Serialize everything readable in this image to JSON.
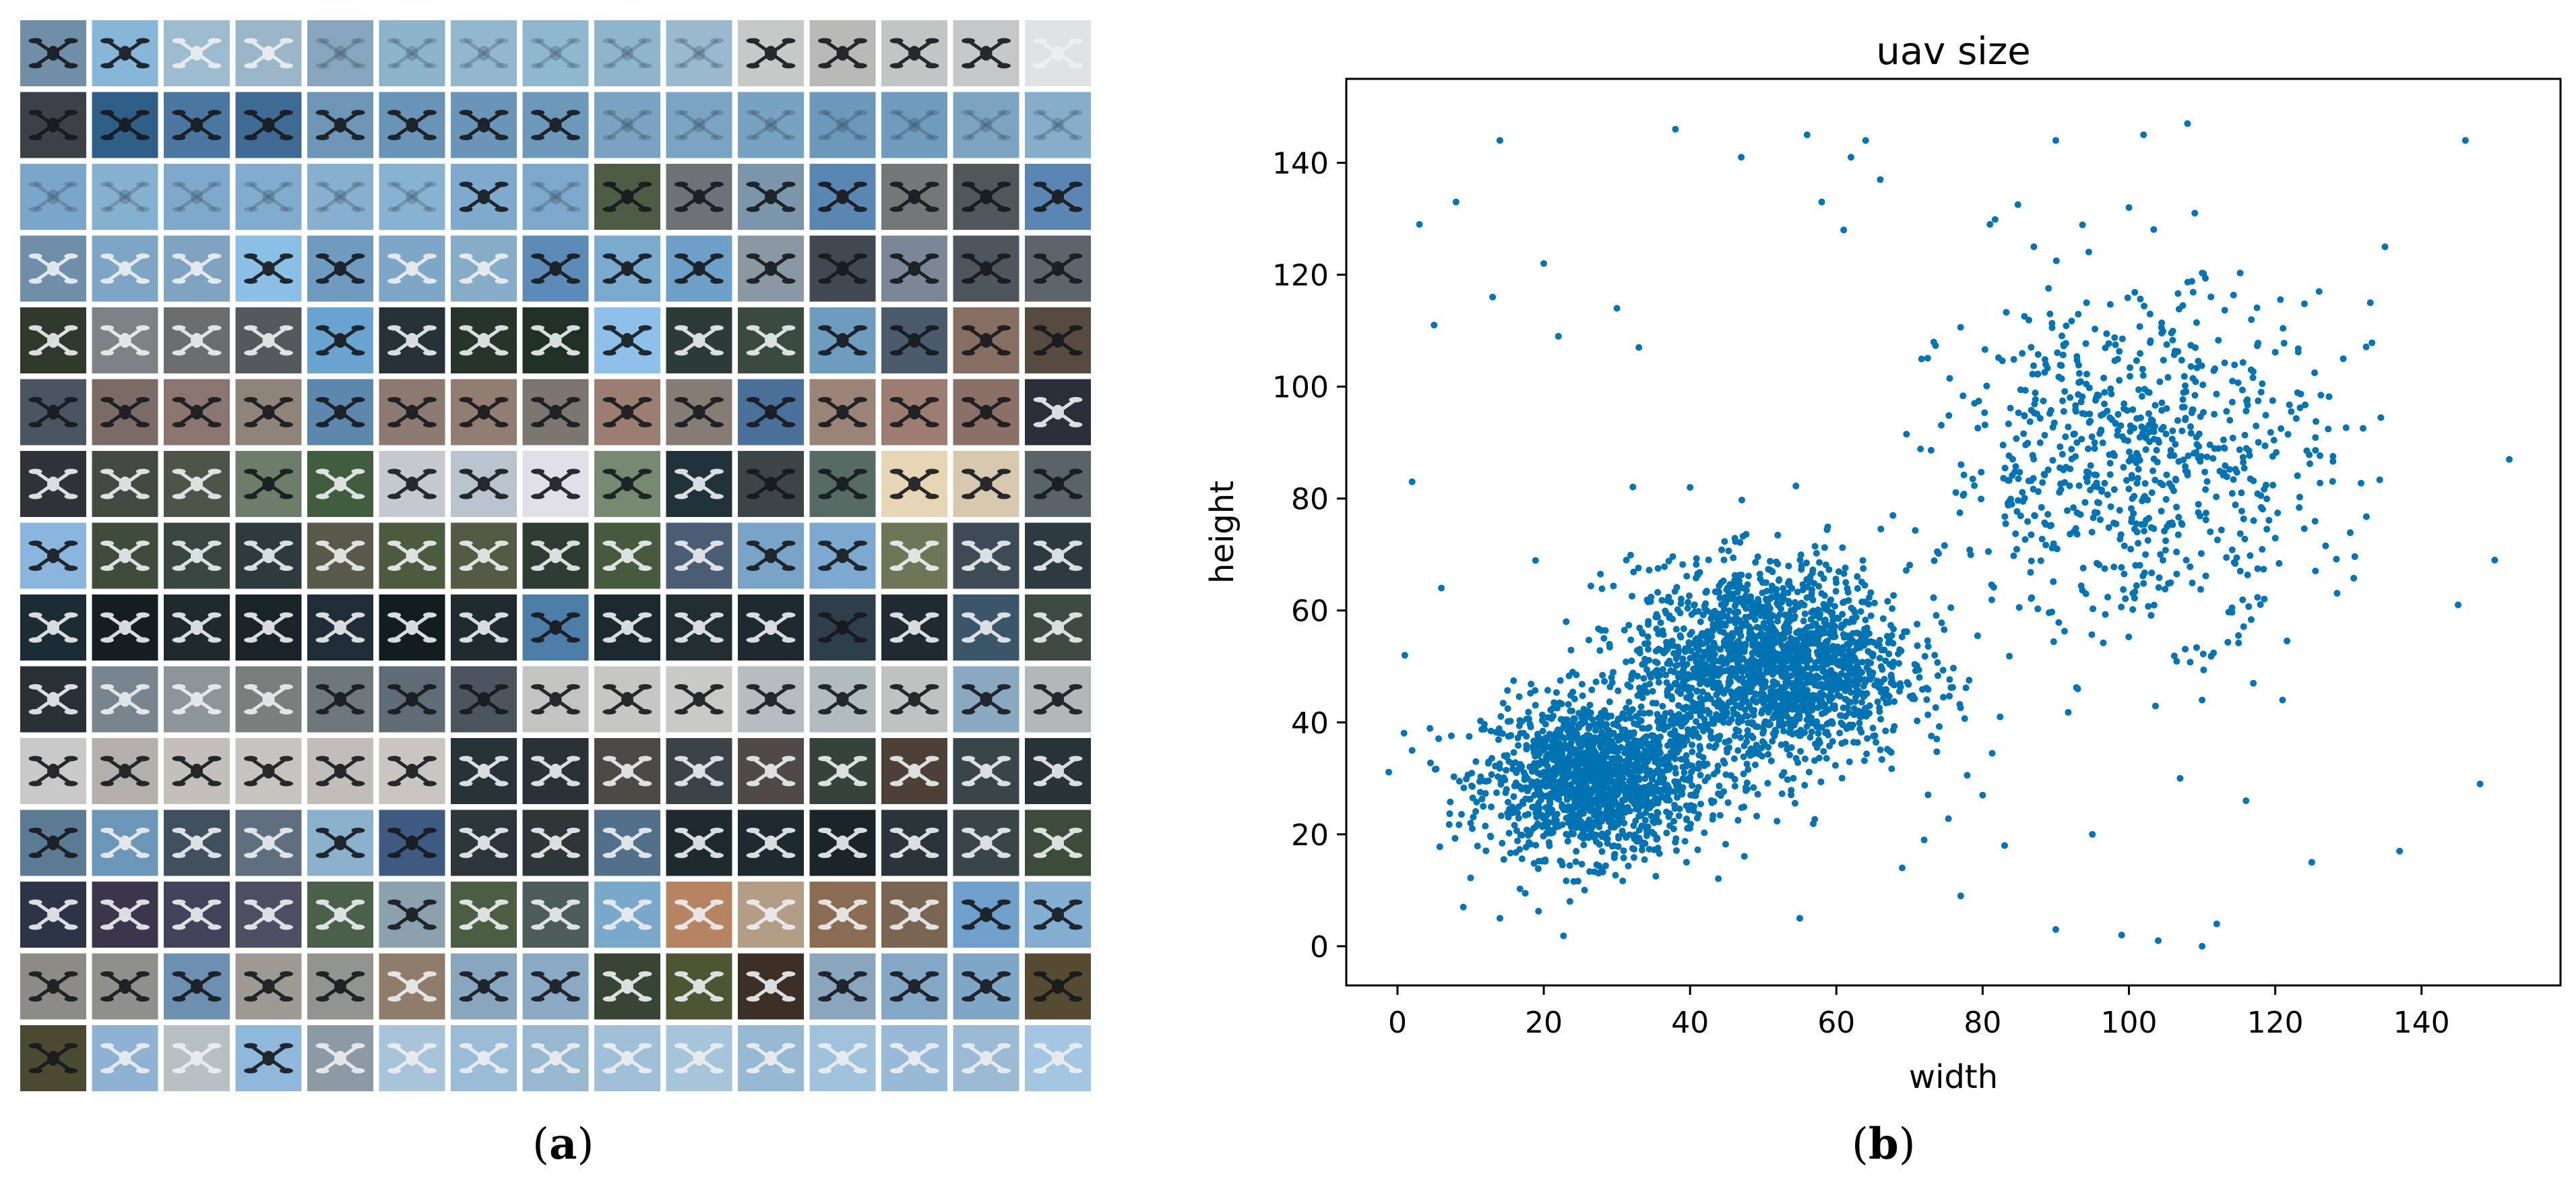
{
  "panels": {
    "a": {
      "caption_open": "(",
      "caption_letter": "a",
      "caption_close": ")"
    },
    "b": {
      "caption_open": "(",
      "caption_letter": "b",
      "caption_close": ")"
    }
  },
  "mosaic": {
    "rows": 15,
    "cols": 15,
    "tile_colors": [
      [
        "#6f8fa8",
        "#86b6d8",
        "#9dbcd0",
        "#9ab6c8",
        "#86a6be",
        "#8eb4cc",
        "#93b7cf",
        "#8fb7d0",
        "#8fb5cc",
        "#9ab9ce",
        "#c7c9c9",
        "#b9b9b8",
        "#c3c4c4",
        "#c5c7c9",
        "#e0e2e4"
      ],
      [
        "#3b4147",
        "#2f5f86",
        "#4a76a0",
        "#3f6a94",
        "#6d95b5",
        "#6a94b7",
        "#6a95b8",
        "#6d98ba",
        "#7aa2c1",
        "#7ba4c3",
        "#78a2c2",
        "#6b98bb",
        "#6f9bbd",
        "#7ca4c1",
        "#86aeca"
      ],
      [
        "#7aa6cb",
        "#86b0cf",
        "#7fa9ca",
        "#82acce",
        "#86afd0",
        "#88b2d1",
        "#80aacd",
        "#7ea8cb",
        "#4e5b45",
        "#6d7276",
        "#7b95aa",
        "#5a87b1",
        "#757678",
        "#4f5758",
        "#5b86b4"
      ],
      [
        "#6e8eaa",
        "#7ea5c4",
        "#7fa3c0",
        "#8cbfe6",
        "#6f9bc0",
        "#7ea6c6",
        "#86acc8",
        "#5d8bb7",
        "#7baacf",
        "#6d9fc8",
        "#8a98a3",
        "#414852",
        "#7b8796",
        "#4f555d",
        "#5e646c"
      ],
      [
        "#2f3a2c",
        "#7e8285",
        "#6c6d6f",
        "#55595e",
        "#6aa2d0",
        "#263238",
        "#27342a",
        "#203025",
        "#8ec0ea",
        "#2d3b38",
        "#394a3f",
        "#6e9cbe",
        "#4a5c6c",
        "#866f62",
        "#574a3f"
      ],
      [
        "#4b5562",
        "#7b6b66",
        "#8a7570",
        "#8f8479",
        "#5d87ad",
        "#8c7a70",
        "#927d72",
        "#7c7670",
        "#9b7d71",
        "#867c76",
        "#4a6f99",
        "#9a8478",
        "#9d7d72",
        "#8a7066",
        "#2c2f39"
      ],
      [
        "#2f3236",
        "#424a42",
        "#4f5449",
        "#6c7d6a",
        "#405e3d",
        "#c5c8cf",
        "#b9c4cf",
        "#e0e0e6",
        "#758a70",
        "#22323a",
        "#3d4448",
        "#566b63",
        "#e7d6b6",
        "#d8c8b0",
        "#5a6468"
      ],
      [
        "#8ab6de",
        "#3f4c3c",
        "#3a4642",
        "#2f3a3e",
        "#5a5a4a",
        "#4c5a3e",
        "#555a44",
        "#2f3c34",
        "#475a3e",
        "#4a5d75",
        "#79a4c8",
        "#7da9d0",
        "#6f7658",
        "#3e4a55",
        "#2d3a40"
      ],
      [
        "#1c2c35",
        "#161e22",
        "#1e2a2c",
        "#1a2328",
        "#1f2d36",
        "#131c1f",
        "#1f2b2f",
        "#4c7ea8",
        "#1c2a30",
        "#222d31",
        "#1e2a30",
        "#2e3e4a",
        "#1f2b31",
        "#3a5668",
        "#3e4a43"
      ],
      [
        "#2a3134",
        "#79858e",
        "#8d9598",
        "#7a7f7e",
        "#6e7879",
        "#5f6b75",
        "#4c5460",
        "#c3c4c2",
        "#c6c6c5",
        "#c9c9c8",
        "#b5bbbe",
        "#b2bcbf",
        "#c0c2c1",
        "#8aa9c0",
        "#b4b7b8"
      ],
      [
        "#c8c9c8",
        "#b3b0ac",
        "#c3c0bc",
        "#c6c4bf",
        "#c1beb9",
        "#c9c6c2",
        "#283337",
        "#2a3235",
        "#4b4a44",
        "#3c4347",
        "#4f4a45",
        "#35433c",
        "#4d4036",
        "#3a4549",
        "#283438"
      ],
      [
        "#5b7b94",
        "#6b96b8",
        "#40505e",
        "#5f6f7f",
        "#8ab0cc",
        "#3e5a80",
        "#2c3537",
        "#2e3638",
        "#52708c",
        "#1f2a2f",
        "#1f2930",
        "#1b2529",
        "#2c343b",
        "#3a4646",
        "#3d4b3a"
      ],
      [
        "#2e3447",
        "#3c364d",
        "#43425a",
        "#4f4f64",
        "#4a6049",
        "#8ba1ad",
        "#4b5e43",
        "#4c5c58",
        "#7aa8cb",
        "#b68363",
        "#b39d86",
        "#8a6c53",
        "#7a6552",
        "#6ea0cb",
        "#83aed2"
      ],
      [
        "#8c8b86",
        "#8f8f8b",
        "#6d8fb0",
        "#9d9a94",
        "#929490",
        "#8f7c6a",
        "#88a7bf",
        "#8aa9c4",
        "#384535",
        "#4e5533",
        "#3c2f26",
        "#8aa5bc",
        "#83a7c4",
        "#7fa5c7",
        "#574a32"
      ],
      [
        "#4a4a30",
        "#8fb2d2",
        "#b9c0c4",
        "#8fb8db",
        "#8c9aa6",
        "#a9c4da",
        "#9bbcd6",
        "#98b8d0",
        "#a0c0d8",
        "#a6c4da",
        "#97b8d2",
        "#a0c2dc",
        "#98bad6",
        "#9bbad4",
        "#a5c6e2"
      ]
    ],
    "drone_tone": [
      [
        "dark",
        "dark",
        "light",
        "light",
        "faint",
        "faint",
        "faint",
        "faint",
        "faint",
        "faint",
        "dark",
        "dark",
        "dark",
        "dark",
        "light"
      ],
      [
        "dark",
        "dark",
        "dark",
        "dark",
        "dark",
        "dark",
        "dark",
        "dark",
        "faint",
        "faint",
        "faint",
        "faint",
        "faint",
        "faint",
        "faint"
      ],
      [
        "faint",
        "faint",
        "faint",
        "faint",
        "faint",
        "faint",
        "dark",
        "faint",
        "dark",
        "dark",
        "dark",
        "dark",
        "dark",
        "dark",
        "dark"
      ],
      [
        "light",
        "light",
        "light",
        "dark",
        "dark",
        "light",
        "light",
        "dark",
        "dark",
        "dark",
        "dark",
        "dark",
        "dark",
        "dark",
        "dark"
      ],
      [
        "light",
        "light",
        "light",
        "light",
        "dark",
        "light",
        "light",
        "light",
        "dark",
        "light",
        "light",
        "dark",
        "dark",
        "dark",
        "dark"
      ],
      [
        "dark",
        "dark",
        "dark",
        "dark",
        "dark",
        "dark",
        "dark",
        "dark",
        "dark",
        "dark",
        "dark",
        "dark",
        "dark",
        "dark",
        "light"
      ],
      [
        "light",
        "light",
        "light",
        "dark",
        "light",
        "dark",
        "dark",
        "dark",
        "dark",
        "light",
        "dark",
        "dark",
        "dark",
        "dark",
        "dark"
      ],
      [
        "dark",
        "light",
        "light",
        "light",
        "light",
        "light",
        "light",
        "light",
        "light",
        "light",
        "dark",
        "dark",
        "light",
        "light",
        "light"
      ],
      [
        "light",
        "light",
        "light",
        "light",
        "light",
        "light",
        "light",
        "dark",
        "light",
        "light",
        "light",
        "dark",
        "light",
        "light",
        "light"
      ],
      [
        "light",
        "light",
        "light",
        "light",
        "dark",
        "dark",
        "dark",
        "dark",
        "dark",
        "dark",
        "dark",
        "dark",
        "dark",
        "dark",
        "dark"
      ],
      [
        "dark",
        "dark",
        "dark",
        "dark",
        "dark",
        "dark",
        "light",
        "light",
        "light",
        "light",
        "light",
        "light",
        "light",
        "light",
        "light"
      ],
      [
        "dark",
        "light",
        "light",
        "light",
        "dark",
        "dark",
        "light",
        "light",
        "light",
        "light",
        "light",
        "light",
        "light",
        "light",
        "light"
      ],
      [
        "light",
        "light",
        "light",
        "light",
        "light",
        "dark",
        "light",
        "light",
        "light",
        "light",
        "light",
        "light",
        "light",
        "dark",
        "dark"
      ],
      [
        "dark",
        "dark",
        "dark",
        "dark",
        "dark",
        "light",
        "dark",
        "dark",
        "light",
        "light",
        "light",
        "dark",
        "dark",
        "dark",
        "dark"
      ],
      [
        "dark",
        "light",
        "light",
        "dark",
        "light",
        "light",
        "light",
        "light",
        "light",
        "light",
        "light",
        "light",
        "light",
        "light",
        "light"
      ]
    ]
  },
  "chart_data": {
    "type": "scatter",
    "title": "uav size",
    "xlabel": "width",
    "ylabel": "height",
    "xlim": [
      -7,
      159
    ],
    "ylim": [
      -7,
      155
    ],
    "xticks": [
      0,
      20,
      40,
      60,
      80,
      100,
      120,
      140
    ],
    "yticks": [
      0,
      20,
      40,
      60,
      80,
      100,
      120,
      140
    ],
    "grid": false,
    "legend": "none",
    "point_color": "#0173b2",
    "clusters": [
      {
        "center": [
          27,
          30
        ],
        "spread": [
          7.5,
          7.0
        ],
        "count": 1500
      },
      {
        "center": [
          51,
          50
        ],
        "spread": [
          9.5,
          9.0
        ],
        "count": 1900
      },
      {
        "center": [
          101,
          87
        ],
        "spread": [
          13.0,
          15.0
        ],
        "count": 750
      }
    ],
    "points": [
      [
        1,
        52
      ],
      [
        2,
        35
      ],
      [
        2,
        83
      ],
      [
        3,
        129
      ],
      [
        5,
        111
      ],
      [
        6,
        64
      ],
      [
        8,
        133
      ],
      [
        9,
        7
      ],
      [
        13,
        116
      ],
      [
        14,
        144
      ],
      [
        14,
        5
      ],
      [
        20,
        122
      ],
      [
        22,
        109
      ],
      [
        30,
        114
      ],
      [
        33,
        107
      ],
      [
        38,
        146
      ],
      [
        47,
        141
      ],
      [
        55,
        5
      ],
      [
        56,
        145
      ],
      [
        58,
        133
      ],
      [
        61,
        128
      ],
      [
        62,
        141
      ],
      [
        64,
        144
      ],
      [
        66,
        137
      ],
      [
        77,
        9
      ],
      [
        81,
        129
      ],
      [
        87,
        125
      ],
      [
        90,
        3
      ],
      [
        90,
        144
      ],
      [
        95,
        20
      ],
      [
        99,
        2
      ],
      [
        100,
        132
      ],
      [
        102,
        145
      ],
      [
        104,
        1
      ],
      [
        107,
        30
      ],
      [
        108,
        147
      ],
      [
        109,
        131
      ],
      [
        110,
        0
      ],
      [
        110,
        44
      ],
      [
        112,
        4
      ],
      [
        116,
        26
      ],
      [
        125,
        15
      ],
      [
        126,
        117
      ],
      [
        133,
        115
      ],
      [
        135,
        125
      ],
      [
        137,
        17
      ],
      [
        145,
        61
      ],
      [
        146,
        144
      ],
      [
        148,
        29
      ],
      [
        150,
        69
      ],
      [
        152,
        87
      ],
      [
        117,
        47
      ],
      [
        121,
        44
      ],
      [
        93,
        46
      ],
      [
        80,
        27
      ],
      [
        83,
        18
      ],
      [
        72,
        19
      ],
      [
        69,
        14
      ],
      [
        10,
        22
      ],
      [
        40,
        82
      ]
    ]
  }
}
